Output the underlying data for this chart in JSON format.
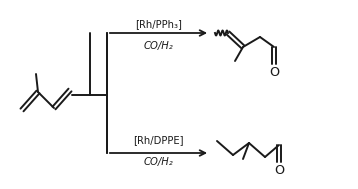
{
  "bg_color": "#ffffff",
  "line_color": "#1a1a1a",
  "text_color": "#1a1a1a",
  "lw": 1.4,
  "arrow_label_top": "[Rh/PPh₃]",
  "arrow_label_top2": "CO/H₂",
  "arrow_label_bot": "[Rh/DPPE]",
  "arrow_label_bot2": "CO/H₂",
  "fontsize": 7.2
}
